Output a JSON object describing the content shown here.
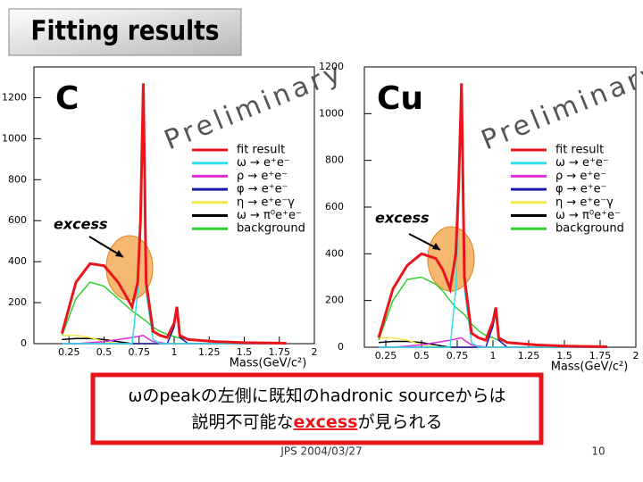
{
  "slide": {
    "title": "Fitting results",
    "caption_line1": "ωのpeakの左側に既知のhadronic sourceからは",
    "caption_line2": [
      "説明不可能な",
      "excess",
      "が見られる"
    ],
    "footer": "JPS 2004/03/27",
    "page": "10"
  },
  "chart_data": [
    {
      "type": "line",
      "label": "C",
      "watermark": "Preliminary",
      "annotation": "excess",
      "x_label": "Mass(GeV/c²)",
      "x": [
        0.2,
        0.3,
        0.4,
        0.5,
        0.6,
        0.65,
        0.7,
        0.74,
        0.76,
        0.78,
        0.8,
        0.85,
        0.9,
        0.95,
        1.0,
        1.02,
        1.04,
        1.1,
        1.3,
        1.5,
        1.8
      ],
      "xlim": [
        0,
        2
      ],
      "xticks": [
        0.25,
        0.5,
        0.75,
        1,
        1.25,
        1.5,
        1.75,
        2
      ],
      "ylim": [
        0,
        1350
      ],
      "yticks": [
        0,
        200,
        400,
        600,
        800,
        1000,
        1200
      ],
      "series": [
        {
          "name": "fit result",
          "color": "#e8161b",
          "values": [
            50,
            300,
            390,
            380,
            300,
            240,
            180,
            300,
            600,
            1270,
            300,
            60,
            40,
            30,
            100,
            180,
            40,
            20,
            10,
            5,
            2
          ]
        },
        {
          "name": "ω → e⁺e⁻",
          "color": "#2fe0e8",
          "values": [
            0,
            0,
            0,
            0,
            0,
            0,
            0,
            250,
            550,
            1070,
            250,
            20,
            0,
            0,
            0,
            0,
            0,
            0,
            0,
            0,
            0
          ]
        },
        {
          "name": "ρ → e⁺e⁻",
          "color": "#e02bd8",
          "values": [
            0,
            0,
            5,
            10,
            20,
            25,
            30,
            35,
            38,
            40,
            30,
            10,
            5,
            0,
            0,
            0,
            0,
            0,
            0,
            0,
            0
          ]
        },
        {
          "name": "φ → e⁺e⁻",
          "color": "#1a1aa8",
          "values": [
            0,
            0,
            0,
            0,
            0,
            0,
            0,
            0,
            0,
            0,
            0,
            0,
            0,
            0,
            80,
            160,
            30,
            0,
            0,
            0,
            0
          ]
        },
        {
          "name": "η → e⁺e⁻γ",
          "color": "#f3e84a",
          "values": [
            40,
            40,
            30,
            10,
            0,
            0,
            0,
            0,
            0,
            0,
            0,
            0,
            0,
            0,
            0,
            0,
            0,
            0,
            0,
            0,
            0
          ]
        },
        {
          "name": "ω → π⁰e⁺e⁻",
          "color": "#000000",
          "values": [
            20,
            25,
            25,
            20,
            10,
            5,
            0,
            0,
            0,
            0,
            0,
            0,
            0,
            0,
            0,
            0,
            0,
            0,
            0,
            0,
            0
          ]
        },
        {
          "name": "background",
          "color": "#2fd22f",
          "values": [
            40,
            220,
            300,
            280,
            220,
            190,
            160,
            140,
            130,
            120,
            110,
            80,
            60,
            45,
            35,
            30,
            28,
            20,
            8,
            4,
            1
          ]
        }
      ]
    },
    {
      "type": "line",
      "label": "Cu",
      "watermark": "Preliminary",
      "annotation": "excess",
      "x_label": "Mass(GeV/c²)",
      "x": [
        0.2,
        0.3,
        0.4,
        0.5,
        0.6,
        0.65,
        0.7,
        0.74,
        0.76,
        0.78,
        0.8,
        0.85,
        0.9,
        0.95,
        1.0,
        1.02,
        1.04,
        1.1,
        1.3,
        1.5,
        1.8
      ],
      "xlim": [
        0.1,
        2
      ],
      "xticks": [
        0.25,
        0.5,
        0.75,
        1,
        1.25,
        1.5,
        1.75,
        2
      ],
      "ylim": [
        0,
        1200
      ],
      "yticks": [
        0,
        200,
        400,
        600,
        800,
        1000,
        1200
      ],
      "series": [
        {
          "name": "fit result",
          "color": "#e8161b",
          "values": [
            40,
            250,
            350,
            400,
            380,
            330,
            250,
            400,
            700,
            1130,
            300,
            60,
            40,
            30,
            110,
            170,
            40,
            20,
            10,
            5,
            2
          ]
        },
        {
          "name": "ω → e⁺e⁻",
          "color": "#2fe0e8",
          "values": [
            0,
            0,
            0,
            0,
            0,
            0,
            0,
            250,
            600,
            1065,
            250,
            20,
            0,
            0,
            0,
            0,
            0,
            0,
            0,
            0,
            0
          ]
        },
        {
          "name": "ρ → e⁺e⁻",
          "color": "#e02bd8",
          "values": [
            0,
            0,
            5,
            10,
            20,
            25,
            30,
            35,
            38,
            40,
            30,
            10,
            5,
            0,
            0,
            0,
            0,
            0,
            0,
            0,
            0
          ]
        },
        {
          "name": "φ → e⁺e⁻",
          "color": "#1a1aa8",
          "values": [
            0,
            0,
            0,
            0,
            0,
            0,
            0,
            0,
            0,
            0,
            0,
            0,
            0,
            0,
            90,
            150,
            30,
            0,
            0,
            0,
            0
          ]
        },
        {
          "name": "η → e⁺e⁻γ",
          "color": "#f3e84a",
          "values": [
            40,
            40,
            30,
            10,
            0,
            0,
            0,
            0,
            0,
            0,
            0,
            0,
            0,
            0,
            0,
            0,
            0,
            0,
            0,
            0,
            0
          ]
        },
        {
          "name": "ω → π⁰e⁺e⁻",
          "color": "#000000",
          "values": [
            20,
            25,
            25,
            20,
            10,
            5,
            0,
            0,
            0,
            0,
            0,
            0,
            0,
            0,
            0,
            0,
            0,
            0,
            0,
            0,
            0
          ]
        },
        {
          "name": "background",
          "color": "#2fd22f",
          "values": [
            30,
            200,
            290,
            300,
            270,
            240,
            200,
            170,
            160,
            150,
            140,
            100,
            70,
            50,
            40,
            35,
            30,
            22,
            8,
            4,
            1
          ]
        }
      ]
    }
  ]
}
